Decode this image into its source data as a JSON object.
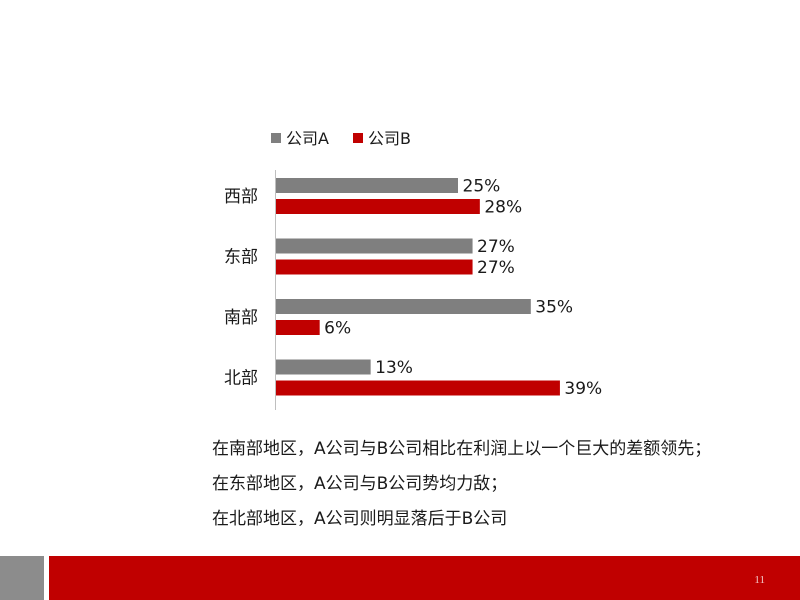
{
  "chart_data": {
    "type": "bar",
    "orientation": "horizontal",
    "categories": [
      "西部",
      "东部",
      "南部",
      "北部"
    ],
    "series": [
      {
        "name": "公司A",
        "color": "#7f7f7f",
        "values": [
          25,
          27,
          35,
          13
        ]
      },
      {
        "name": "公司B",
        "color": "#c00000",
        "values": [
          28,
          27,
          6,
          39
        ]
      }
    ],
    "value_suffix": "%",
    "xlim": [
      0,
      50
    ],
    "legend_position": "top",
    "grid": false,
    "title": "",
    "xlabel": "",
    "ylabel": ""
  },
  "notes": [
    "在南部地区，A公司与B公司相比在利润上以一个巨大的差额领先；",
    "在东部地区，A公司与B公司势均力敌；",
    "在北部地区，A公司则明显落后于B公司"
  ],
  "footer": {
    "page_number": "11",
    "accent_color": "#c00000",
    "gray_color": "#8c8c8c"
  }
}
